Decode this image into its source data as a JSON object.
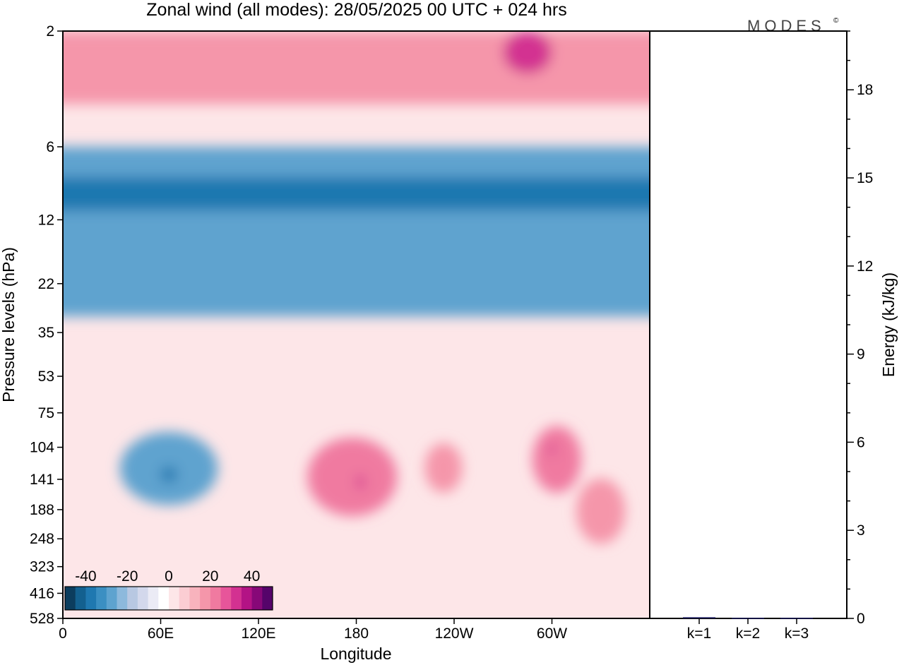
{
  "title": "Zonal wind (all modes):  28/05/2025  00 UTC  + 024 hrs",
  "logo": {
    "text": "MODES",
    "mark": "©"
  },
  "chart_data": [
    {
      "type": "heatmap",
      "title": "Zonal wind (all modes):  28/05/2025  00 UTC  + 024 hrs",
      "xlabel": "Longitude",
      "ylabel": "Pressure levels (hPa)",
      "y_scale": "log",
      "ylim": [
        528,
        2
      ],
      "xlim": [
        0,
        360
      ],
      "x_ticks": [
        {
          "lon": 0,
          "label": "0"
        },
        {
          "lon": 60,
          "label": "60E"
        },
        {
          "lon": 120,
          "label": "120E"
        },
        {
          "lon": 180,
          "label": "180"
        },
        {
          "lon": 240,
          "label": "120W"
        },
        {
          "lon": 300,
          "label": "60W"
        }
      ],
      "y_ticks": [
        2,
        6,
        12,
        22,
        35,
        53,
        75,
        104,
        141,
        188,
        248,
        323,
        416,
        528
      ],
      "colorbar": {
        "ticks": [
          "-40",
          "-20",
          "0",
          "20",
          "40"
        ],
        "colors": [
          "#0c3d5e",
          "#13608f",
          "#1f78b0",
          "#3b8fc2",
          "#5ea3cf",
          "#8db9dc",
          "#b8c8e2",
          "#d3d8ec",
          "#ebebf5",
          "#ffffff",
          "#fde6e8",
          "#fbcdd3",
          "#f8b3bd",
          "#f596aa",
          "#f07aa0",
          "#e7559a",
          "#d33191",
          "#b31385",
          "#870878",
          "#55046a"
        ],
        "contour_interval": 5,
        "range": [
          -50,
          50
        ]
      },
      "regions": [
        {
          "name": "upper-level easterlies",
          "lon": [
            0,
            360
          ],
          "hPa": [
            6,
            30
          ],
          "u": -30
        },
        {
          "name": "easterly core",
          "lon": [
            0,
            360
          ],
          "hPa": [
            8,
            11
          ],
          "u": -40
        },
        {
          "name": "top westerlies",
          "lon": [
            0,
            360
          ],
          "hPa": [
            2,
            4
          ],
          "u": 15
        },
        {
          "name": "westerly max near 60W at top",
          "lon": [
            270,
            300
          ],
          "hPa": [
            2,
            3
          ],
          "u": 30
        },
        {
          "name": "easterly jet near 60E",
          "lon": [
            35,
            95
          ],
          "hPa": [
            90,
            180
          ],
          "u": -30
        },
        {
          "name": "easterly core near 60E",
          "lon": [
            60,
            70
          ],
          "hPa": [
            125,
            145
          ],
          "u": -40
        },
        {
          "name": "westerlies near 180",
          "lon": [
            150,
            205
          ],
          "hPa": [
            95,
            200
          ],
          "u": 20
        },
        {
          "name": "westerly max near 180",
          "lon": [
            180,
            185
          ],
          "hPa": [
            135,
            155
          ],
          "u": 30
        },
        {
          "name": "westerlies near 150W",
          "lon": [
            222,
            245
          ],
          "hPa": [
            100,
            160
          ],
          "u": 15
        },
        {
          "name": "westerlies near 60W",
          "lon": [
            288,
            318
          ],
          "hPa": [
            85,
            160
          ],
          "u": 20
        },
        {
          "name": "westerly max near 60W",
          "lon": [
            298,
            302
          ],
          "hPa": [
            100,
            112
          ],
          "u": 30
        },
        {
          "name": "weak westerlies near 40W",
          "lon": [
            315,
            345
          ],
          "hPa": [
            140,
            260
          ],
          "u": 15
        }
      ]
    },
    {
      "type": "bar",
      "categories": [
        "k=1",
        "k=2",
        "k=3"
      ],
      "values": [
        0.04,
        0.02,
        0.02
      ],
      "ylabel": "Energy (kJ/kg)",
      "ylim": [
        0,
        20
      ],
      "y_ticks": [
        0,
        3,
        6,
        9,
        12,
        15,
        18
      ]
    }
  ]
}
